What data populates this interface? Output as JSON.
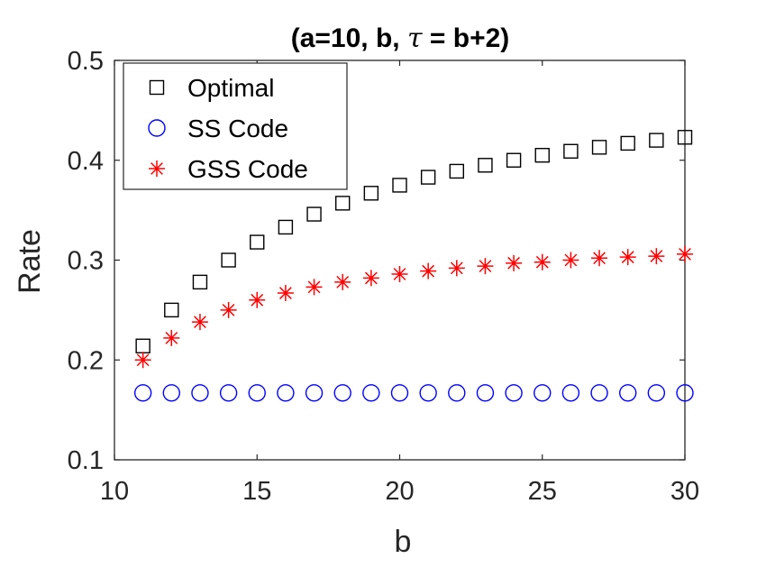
{
  "chart_data": {
    "type": "scatter",
    "title_prefix": "(a=10, b, ",
    "title_symbol": "τ",
    "title_suffix": " = b+2)",
    "xlabel": "b",
    "ylabel": "Rate",
    "xlim": [
      10,
      30
    ],
    "ylim": [
      0.1,
      0.5
    ],
    "xticks": [
      10,
      15,
      20,
      25,
      30
    ],
    "yticks": [
      0.1,
      0.2,
      0.3,
      0.4,
      0.5
    ],
    "x": [
      11,
      12,
      13,
      14,
      15,
      16,
      17,
      18,
      19,
      20,
      21,
      22,
      23,
      24,
      25,
      26,
      27,
      28,
      29,
      30
    ],
    "series": [
      {
        "name": "Optimal",
        "marker": "square",
        "color": "#000000",
        "values": [
          0.214,
          0.25,
          0.278,
          0.3,
          0.318,
          0.333,
          0.346,
          0.357,
          0.367,
          0.375,
          0.383,
          0.389,
          0.395,
          0.4,
          0.405,
          0.409,
          0.413,
          0.417,
          0.42,
          0.423
        ]
      },
      {
        "name": "SS Code",
        "marker": "circle",
        "color": "#0000ff",
        "values": [
          0.167,
          0.167,
          0.167,
          0.167,
          0.167,
          0.167,
          0.167,
          0.167,
          0.167,
          0.167,
          0.167,
          0.167,
          0.167,
          0.167,
          0.167,
          0.167,
          0.167,
          0.167,
          0.167,
          0.167
        ]
      },
      {
        "name": "GSS Code",
        "marker": "asterisk",
        "color": "#ff0000",
        "values": [
          0.2,
          0.222,
          0.238,
          0.25,
          0.26,
          0.267,
          0.273,
          0.278,
          0.282,
          0.286,
          0.289,
          0.292,
          0.294,
          0.297,
          0.298,
          0.3,
          0.302,
          0.303,
          0.304,
          0.306
        ]
      }
    ],
    "legend_position": "top-left",
    "grid": false
  }
}
